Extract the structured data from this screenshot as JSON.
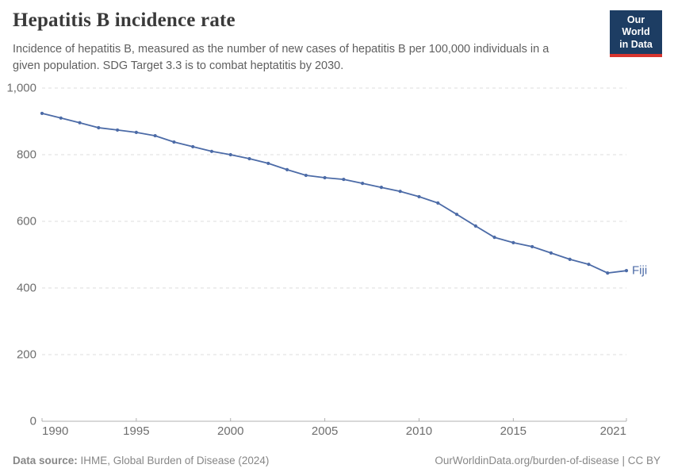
{
  "header": {
    "title": "Hepatitis B incidence rate",
    "subtitle": "Incidence of hepatitis B, measured as the number of new cases of hepatitis B per 100,000 individuals in a given population. SDG Target 3.3 is to combat heptatitis by 2030.",
    "logo": {
      "line1": "Our World",
      "line2": "in Data"
    }
  },
  "footer": {
    "source_label": "Data source:",
    "source_value": " IHME, Global Burden of Disease (2024)",
    "right_text": "OurWorldinData.org/burden-of-disease | CC BY"
  },
  "colors": {
    "navy": "#1d3d63",
    "red": "#d8352e",
    "line": "#4c6ba7",
    "grid": "#dedede",
    "axis": "#b0b0b0",
    "tick-text": "#6e6e6e",
    "title-text": "#3a3a3a",
    "subtitle-text": "#5f5f5f",
    "footer-text": "#878787"
  },
  "chart_data": {
    "type": "line",
    "title": "Hepatitis B incidence rate",
    "xlabel": "",
    "ylabel": "",
    "xlim": [
      1990,
      2021
    ],
    "ylim": [
      0,
      1000
    ],
    "x_ticks": [
      1990,
      1995,
      2000,
      2005,
      2010,
      2015,
      2021
    ],
    "y_ticks": [
      0,
      200,
      400,
      600,
      800,
      1000
    ],
    "grid": "horizontal-dashed",
    "legend_position": "end-of-line-label",
    "series": [
      {
        "name": "Fiji",
        "color": "#4c6ba7",
        "x": [
          1990,
          1991,
          1992,
          1993,
          1994,
          1995,
          1996,
          1997,
          1998,
          1999,
          2000,
          2001,
          2002,
          2003,
          2004,
          2005,
          2006,
          2007,
          2008,
          2009,
          2010,
          2011,
          2012,
          2013,
          2014,
          2015,
          2016,
          2017,
          2018,
          2019,
          2020,
          2021
        ],
        "values": [
          924,
          910,
          896,
          881,
          874,
          867,
          857,
          838,
          824,
          810,
          800,
          788,
          774,
          755,
          738,
          731,
          726,
          714,
          702,
          690,
          674,
          655,
          621,
          586,
          552,
          536,
          524,
          505,
          486,
          471,
          445,
          452
        ]
      }
    ]
  }
}
